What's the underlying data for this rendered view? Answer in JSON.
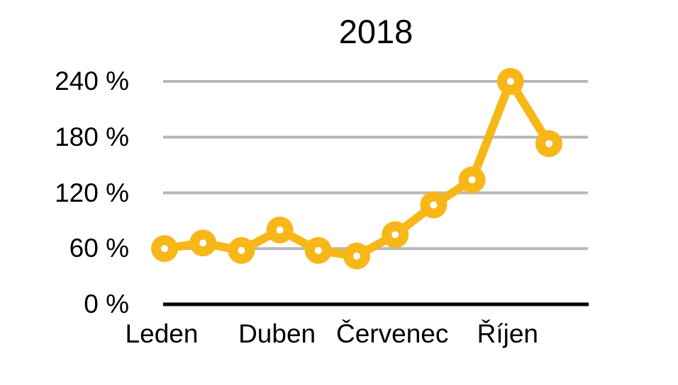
{
  "chart_data": {
    "type": "line",
    "title": "2018",
    "series": [
      {
        "name": "2018",
        "values": [
          60,
          66,
          58,
          80,
          58,
          52,
          75,
          107,
          134,
          240,
          173
        ]
      }
    ],
    "num_points": 11,
    "x_tick_labels": [
      "Leden",
      "Duben",
      "Červenec",
      "Říjen"
    ],
    "x_tick_point_indexes": [
      0,
      3,
      6,
      9
    ],
    "y_ticks": [
      0,
      60,
      120,
      180,
      240
    ],
    "y_tick_suffix": " %",
    "ylim": [
      0,
      240
    ],
    "grid": true,
    "legend_position": "none",
    "colors": {
      "line": "#F8B718",
      "marker_fill": "#F8B718",
      "marker_hole": "#FFFFFF",
      "gridline": "#B7B7B7",
      "axis_line": "#000000",
      "text": "#000000",
      "background": "#FFFFFF"
    }
  }
}
